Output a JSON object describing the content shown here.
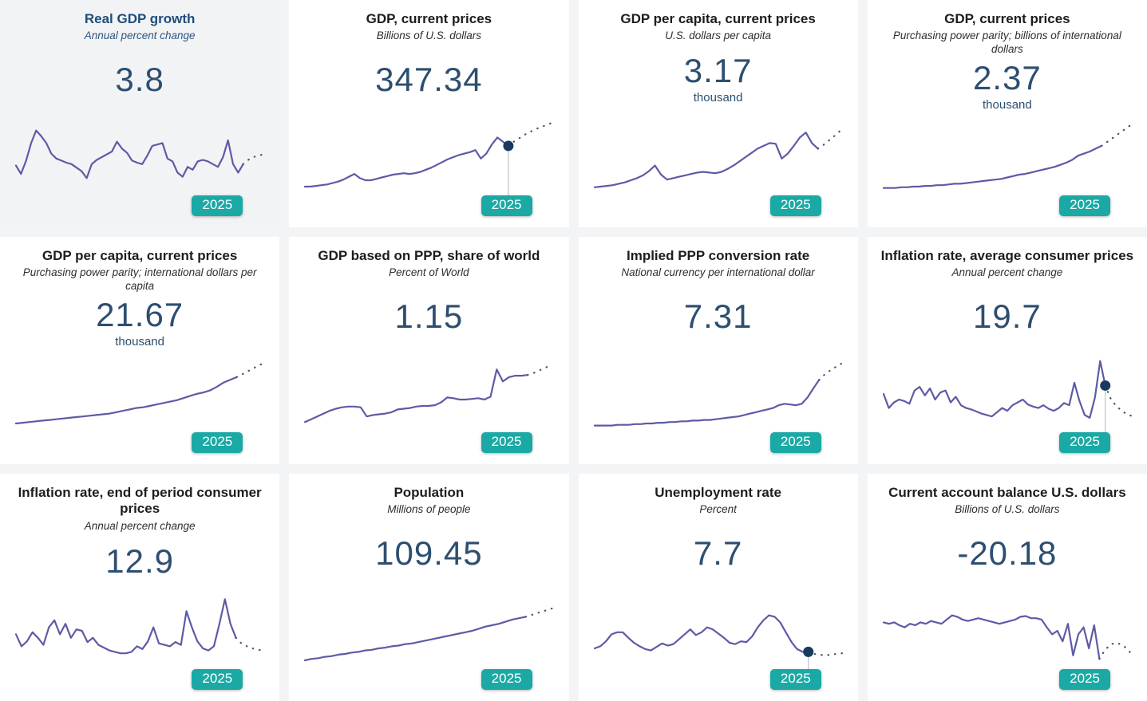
{
  "page": {
    "background_color": "#f3f4f6",
    "card_color": "#ffffff",
    "highlight_card_color": "#f2f3f5",
    "accent_teal": "#1ba9a5",
    "line_color": "#5d5ba6",
    "projection_color": "#44546e",
    "marker_color": "#173a5e",
    "number_color": "#2d4e70",
    "badge_text_color": "#ffffff"
  },
  "chart_data": [
    {
      "type": "line",
      "title": "Real GDP growth",
      "subtitle": "Annual percent change",
      "value": "3.8",
      "unit": "",
      "badge": "2025",
      "highlighted": true,
      "marker_index": null,
      "dotted_from": 45,
      "ylim": [
        0,
        100
      ],
      "values": [
        38,
        26,
        45,
        70,
        88,
        80,
        70,
        55,
        48,
        45,
        42,
        40,
        35,
        30,
        20,
        40,
        46,
        50,
        54,
        58,
        72,
        62,
        56,
        45,
        42,
        40,
        52,
        66,
        68,
        70,
        48,
        44,
        28,
        22,
        36,
        32,
        44,
        46,
        44,
        40,
        36,
        50,
        74,
        40,
        28,
        40,
        46,
        50,
        52,
        54
      ]
    },
    {
      "type": "line",
      "title": "GDP, current prices",
      "subtitle": "Billions of U.S. dollars",
      "value": "347.34",
      "unit": "",
      "badge": "2025",
      "highlighted": false,
      "marker_index": 37,
      "dotted_from": 37,
      "ylim": [
        0,
        100
      ],
      "values": [
        8,
        8,
        9,
        10,
        11,
        13,
        15,
        18,
        22,
        26,
        20,
        17,
        17,
        19,
        21,
        23,
        25,
        26,
        27,
        26,
        27,
        29,
        32,
        35,
        39,
        43,
        47,
        50,
        53,
        55,
        57,
        60,
        48,
        55,
        68,
        78,
        72,
        66,
        72,
        77,
        82,
        86,
        90,
        93,
        96,
        99
      ]
    },
    {
      "type": "line",
      "title": "GDP per capita, current prices",
      "subtitle": "U.S. dollars per capita",
      "value": "3.17",
      "unit": "thousand",
      "badge": "2025",
      "highlighted": false,
      "marker_index": null,
      "dotted_from": 37,
      "ylim": [
        0,
        100
      ],
      "values": [
        7,
        8,
        9,
        10,
        12,
        14,
        17,
        20,
        24,
        30,
        38,
        25,
        18,
        20,
        22,
        24,
        26,
        28,
        29,
        28,
        27,
        29,
        33,
        38,
        44,
        50,
        56,
        62,
        66,
        70,
        69,
        48,
        55,
        66,
        78,
        85,
        70,
        62,
        68,
        75,
        82,
        90
      ]
    },
    {
      "type": "line",
      "title": "GDP, current prices",
      "subtitle": "Purchasing power parity; billions of international dollars",
      "value": "2.37",
      "unit": "thousand",
      "badge": "2025",
      "highlighted": false,
      "marker_index": null,
      "dotted_from": 37,
      "ylim": [
        0,
        100
      ],
      "values": [
        6,
        6,
        6,
        7,
        7,
        8,
        8,
        9,
        9,
        10,
        10,
        11,
        12,
        12,
        13,
        14,
        15,
        16,
        17,
        18,
        19,
        21,
        23,
        25,
        26,
        28,
        30,
        32,
        34,
        36,
        39,
        42,
        46,
        52,
        55,
        58,
        62,
        66,
        72,
        78,
        84,
        90,
        96
      ]
    },
    {
      "type": "line",
      "title": "GDP per capita, current prices",
      "subtitle": "Purchasing power parity; international dollars per capita",
      "value": "21.67",
      "unit": "thousand",
      "badge": "2025",
      "highlighted": false,
      "marker_index": null,
      "dotted_from": 33,
      "ylim": [
        0,
        100
      ],
      "values": [
        8,
        9,
        10,
        11,
        12,
        13,
        14,
        15,
        16,
        17,
        18,
        19,
        20,
        21,
        22,
        24,
        26,
        28,
        30,
        31,
        33,
        35,
        37,
        39,
        41,
        44,
        47,
        50,
        52,
        55,
        60,
        66,
        70,
        74,
        79,
        84,
        89,
        94
      ]
    },
    {
      "type": "line",
      "title": "GDP based on PPP, share of world",
      "subtitle": "Percent of World",
      "value": "1.15",
      "unit": "",
      "badge": "2025",
      "highlighted": false,
      "marker_index": null,
      "dotted_from": 36,
      "ylim": [
        0,
        100
      ],
      "values": [
        10,
        14,
        18,
        22,
        26,
        29,
        31,
        32,
        32,
        31,
        18,
        20,
        21,
        22,
        24,
        28,
        29,
        30,
        32,
        33,
        33,
        34,
        38,
        45,
        44,
        42,
        42,
        43,
        44,
        42,
        46,
        85,
        68,
        74,
        76,
        76,
        77,
        80,
        84,
        88,
        92
      ]
    },
    {
      "type": "line",
      "title": "Implied PPP conversion rate",
      "subtitle": "National currency per international dollar",
      "value": "7.31",
      "unit": "",
      "badge": "2025",
      "highlighted": false,
      "marker_index": null,
      "dotted_from": 39,
      "ylim": [
        0,
        100
      ],
      "values": [
        5,
        5,
        5,
        5,
        6,
        6,
        6,
        7,
        7,
        8,
        8,
        9,
        9,
        10,
        10,
        11,
        11,
        12,
        12,
        13,
        13,
        14,
        15,
        16,
        17,
        18,
        20,
        22,
        24,
        26,
        28,
        30,
        34,
        36,
        35,
        34,
        36,
        45,
        58,
        70,
        78,
        84,
        89,
        94
      ]
    },
    {
      "type": "line",
      "title": "Inflation rate, average consumer prices",
      "subtitle": "Annual percent change",
      "value": "19.7",
      "unit": "",
      "badge": "2025",
      "highlighted": false,
      "marker_index": 43,
      "dotted_from": 43,
      "ylim": [
        0,
        100
      ],
      "values": [
        50,
        30,
        38,
        42,
        40,
        36,
        55,
        60,
        48,
        58,
        42,
        52,
        55,
        38,
        46,
        34,
        30,
        28,
        25,
        22,
        20,
        18,
        24,
        30,
        26,
        34,
        38,
        42,
        35,
        32,
        30,
        34,
        29,
        26,
        30,
        37,
        34,
        66,
        40,
        20,
        16,
        45,
        97,
        62,
        44,
        34,
        27,
        22,
        19
      ]
    },
    {
      "type": "line",
      "title": "Inflation rate, end of period consumer prices",
      "subtitle": "Annual percent change",
      "value": "12.9",
      "unit": "",
      "badge": "2025",
      "highlighted": false,
      "marker_index": null,
      "dotted_from": 40,
      "ylim": [
        0,
        100
      ],
      "values": [
        45,
        28,
        35,
        48,
        40,
        30,
        55,
        65,
        45,
        60,
        40,
        52,
        50,
        34,
        40,
        30,
        26,
        22,
        20,
        18,
        18,
        20,
        28,
        24,
        35,
        55,
        32,
        30,
        28,
        34,
        30,
        78,
        55,
        35,
        25,
        22,
        28,
        60,
        95,
        60,
        40,
        32,
        28,
        25,
        23,
        22
      ]
    },
    {
      "type": "line",
      "title": "Population",
      "subtitle": "Millions of people",
      "value": "109.45",
      "unit": "",
      "badge": "2025",
      "highlighted": false,
      "marker_index": null,
      "dotted_from": 33,
      "ylim": [
        0,
        100
      ],
      "values": [
        8,
        10,
        11,
        13,
        14,
        16,
        17,
        19,
        20,
        22,
        23,
        25,
        26,
        28,
        29,
        31,
        32,
        34,
        36,
        38,
        40,
        42,
        44,
        46,
        48,
        50,
        53,
        56,
        58,
        60,
        63,
        66,
        68,
        70,
        73,
        76,
        79,
        82
      ]
    },
    {
      "type": "line",
      "title": "Unemployment rate",
      "subtitle": "Percent",
      "value": "7.7",
      "unit": "",
      "badge": "2025",
      "highlighted": false,
      "marker_index": 38,
      "dotted_from": 38,
      "ylim": [
        0,
        100
      ],
      "values": [
        25,
        28,
        35,
        45,
        48,
        48,
        40,
        33,
        28,
        24,
        22,
        27,
        32,
        29,
        31,
        38,
        45,
        52,
        44,
        48,
        55,
        52,
        46,
        40,
        33,
        31,
        35,
        34,
        42,
        55,
        65,
        72,
        70,
        62,
        48,
        34,
        24,
        20,
        20,
        17,
        16,
        15,
        16,
        17,
        18
      ]
    },
    {
      "type": "line",
      "title": "Current account balance U.S. dollars",
      "subtitle": "Billions of U.S. dollars",
      "value": "-20.18",
      "unit": "",
      "badge": "2025",
      "highlighted": false,
      "marker_index": null,
      "dotted_from": 41,
      "ylim": [
        0,
        100
      ],
      "values": [
        62,
        60,
        62,
        58,
        55,
        60,
        58,
        62,
        60,
        64,
        62,
        60,
        66,
        72,
        70,
        66,
        64,
        66,
        68,
        66,
        64,
        62,
        60,
        62,
        64,
        66,
        70,
        71,
        68,
        68,
        66,
        55,
        45,
        50,
        35,
        60,
        15,
        45,
        55,
        25,
        58,
        10,
        22,
        30,
        33,
        31,
        26,
        18
      ]
    }
  ]
}
